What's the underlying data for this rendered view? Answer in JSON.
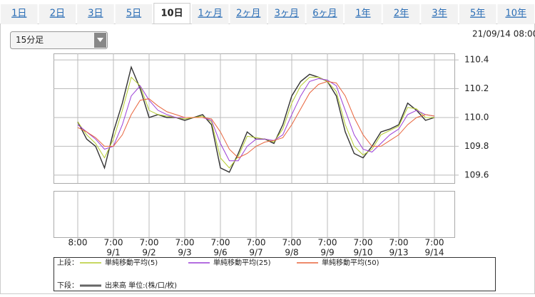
{
  "tabs": [
    "1日",
    "2日",
    "3日",
    "5日",
    "10日",
    "1ヶ月",
    "2ヶ月",
    "3ヶ月",
    "6ヶ月",
    "1年",
    "2年",
    "3年",
    "5年",
    "10年"
  ],
  "selected_tab": 4,
  "interval_select": "15分足",
  "timestamp": "21/09/14 08:00",
  "chart_data": {
    "type": "line",
    "x": [
      0,
      0.25,
      0.5,
      0.75,
      1,
      1.25,
      1.5,
      1.75,
      2,
      2.25,
      2.5,
      2.75,
      3,
      3.25,
      3.5,
      3.75,
      4,
      4.25,
      4.5,
      4.75,
      5,
      5.25,
      5.5,
      5.75,
      6,
      6.25,
      6.5,
      6.75,
      7,
      7.25,
      7.5,
      7.75,
      8,
      8.25,
      8.5,
      8.75,
      9,
      9.25,
      9.5,
      9.75,
      10
    ],
    "series": [
      {
        "color": "#333333",
        "values": [
          109.97,
          109.85,
          109.8,
          109.65,
          109.9,
          110.1,
          110.35,
          110.2,
          110.0,
          110.02,
          110.0,
          110.0,
          109.98,
          110.0,
          110.02,
          109.95,
          109.65,
          109.62,
          109.75,
          109.9,
          109.85,
          109.85,
          109.82,
          109.95,
          110.15,
          110.25,
          110.3,
          110.28,
          110.25,
          110.15,
          109.9,
          109.75,
          109.72,
          109.8,
          109.9,
          109.92,
          109.95,
          110.1,
          110.05,
          109.98,
          110.0
        ]
      },
      {
        "name": "単純移動平均(5)",
        "color": "#b5cc2e",
        "values": [
          109.97,
          109.88,
          109.82,
          109.72,
          109.85,
          110.05,
          110.28,
          110.22,
          110.05,
          110.02,
          110.01,
          110.0,
          109.99,
          110.0,
          110.01,
          109.97,
          109.72,
          109.65,
          109.73,
          109.87,
          109.86,
          109.85,
          109.83,
          109.92,
          110.1,
          110.22,
          110.28,
          110.28,
          110.25,
          110.18,
          109.95,
          109.8,
          109.74,
          109.78,
          109.88,
          109.91,
          109.94,
          110.07,
          110.06,
          110.0,
          110.0
        ]
      },
      {
        "name": "単純移動平均(25)",
        "color": "#9b3fd6",
        "values": [
          109.95,
          109.9,
          109.85,
          109.78,
          109.8,
          109.95,
          110.15,
          110.22,
          110.12,
          110.05,
          110.02,
          110.0,
          110.0,
          110.0,
          110.0,
          109.98,
          109.82,
          109.7,
          109.7,
          109.8,
          109.85,
          109.85,
          109.84,
          109.88,
          110.02,
          110.15,
          110.25,
          110.27,
          110.26,
          110.22,
          110.05,
          109.88,
          109.78,
          109.76,
          109.82,
          109.88,
          109.92,
          110.02,
          110.05,
          110.02,
          110.01
        ]
      },
      {
        "name": "単純移動平均(50)",
        "color": "#e8643c",
        "values": [
          109.93,
          109.9,
          109.86,
          109.8,
          109.8,
          109.88,
          110.02,
          110.12,
          110.13,
          110.08,
          110.04,
          110.02,
          110.0,
          110.0,
          110.0,
          109.99,
          109.9,
          109.78,
          109.72,
          109.75,
          109.8,
          109.83,
          109.84,
          109.86,
          109.95,
          110.06,
          110.17,
          110.23,
          110.25,
          110.24,
          110.15,
          110.0,
          109.88,
          109.8,
          109.8,
          109.84,
          109.88,
          109.95,
          110.0,
          110.02,
          110.01
        ]
      }
    ],
    "xlim": [
      -0.68,
      10.56
    ],
    "xticks": [
      {
        "value": 0,
        "label": "8:00"
      },
      {
        "value": 1,
        "label": "7:00"
      },
      {
        "value": 2,
        "label": "7:00"
      },
      {
        "value": 3,
        "label": "7:00"
      },
      {
        "value": 4,
        "label": "7:00"
      },
      {
        "value": 5,
        "label": "7:00"
      },
      {
        "value": 6,
        "label": "7:00"
      },
      {
        "value": 7,
        "label": "7:00"
      },
      {
        "value": 8,
        "label": "7:00"
      },
      {
        "value": 9,
        "label": "7:00"
      },
      {
        "value": 10,
        "label": "7:00"
      }
    ],
    "xtick_dates": [
      null,
      "9/1",
      "9/2",
      "9/3",
      "9/6",
      "9/7",
      "9/8",
      "9/9",
      "9/10",
      "9/13",
      "9/14"
    ],
    "ylim": [
      109.545,
      110.445
    ],
    "yticks": [
      109.6,
      109.8,
      {
        "value": 110,
        "label": "110.0"
      },
      110.2,
      110.4
    ],
    "grid": true,
    "legend": {
      "upper_label": "上段：",
      "lower_label": "下段：",
      "volume_label": "出来高 単位:(株/口/枚)",
      "volume_color": "#666666"
    }
  }
}
